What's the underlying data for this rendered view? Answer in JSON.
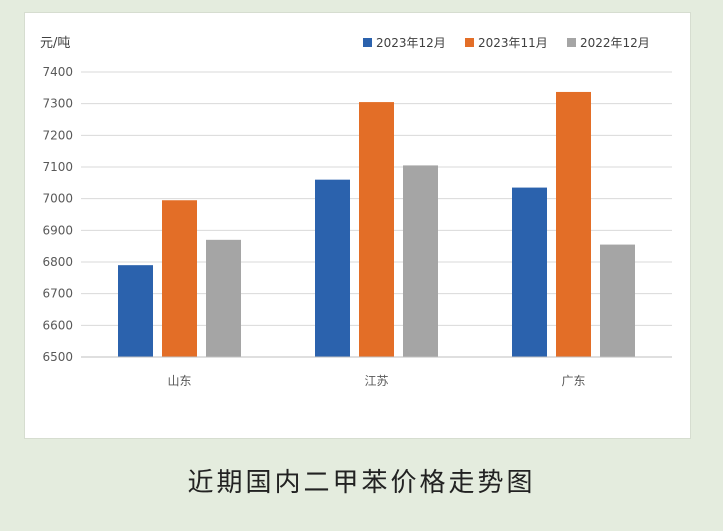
{
  "caption": "近期国内二甲苯价格走势图",
  "chart_data": {
    "type": "bar",
    "title": "",
    "xlabel": "",
    "ylabel": "元/吨",
    "ylim": [
      6500,
      7400
    ],
    "yticks": [
      6500,
      6600,
      6700,
      6800,
      6900,
      7000,
      7100,
      7200,
      7300,
      7400
    ],
    "grid": true,
    "legend_position": "top-right",
    "categories": [
      "山东",
      "江苏",
      "广东"
    ],
    "series": [
      {
        "name": "2023年12月",
        "color": "#2b62ad",
        "values": [
          6790,
          7060,
          7035
        ]
      },
      {
        "name": "2023年11月",
        "color": "#e36e27",
        "values": [
          6995,
          7305,
          7337
        ]
      },
      {
        "name": "2022年12月",
        "color": "#a5a5a5",
        "values": [
          6870,
          7105,
          6855
        ]
      }
    ]
  }
}
